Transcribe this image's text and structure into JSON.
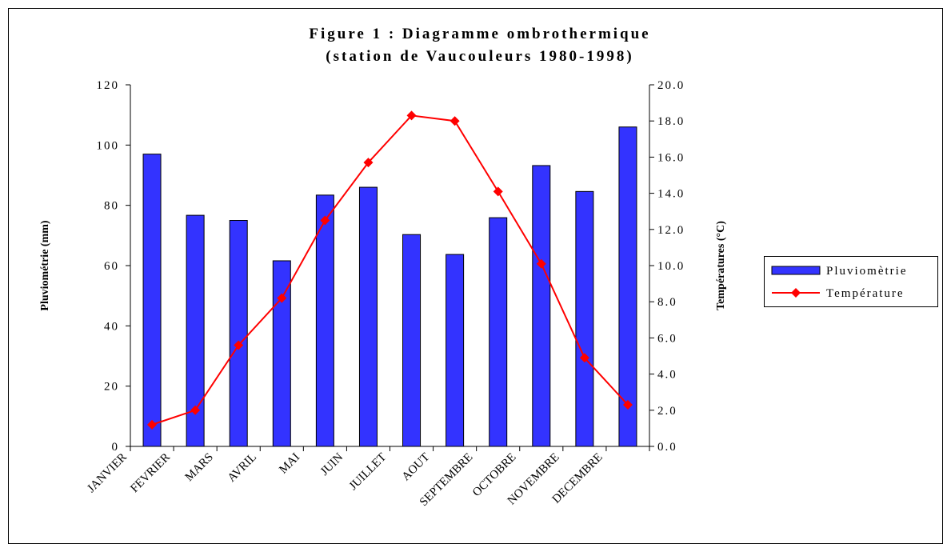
{
  "chart_data": {
    "type": "bar_line",
    "title": "Figure 1 : Diagramme ombrothermique",
    "subtitle": "(station de Vaucouleurs 1980-1998)",
    "ylabel": "Pluviométrie (mm)",
    "y2label": "Températures (°C)",
    "categories": [
      "JANVIER",
      "FEVRIER",
      "MARS",
      "AVRIL",
      "MAI",
      "JUIN",
      "JUILLET",
      "AOUT",
      "SEPTEMBRE",
      "OCTOBRE",
      "NOVEMBRE",
      "DECEMBRE"
    ],
    "series": [
      {
        "name": "Pluviomètrie",
        "color": "#3333ff",
        "type": "bar",
        "values": [
          97,
          76.7,
          75,
          61.6,
          83.4,
          86,
          70.3,
          63.7,
          75.9,
          93.2,
          84.6,
          106
        ]
      },
      {
        "name": "Température",
        "color": "#ff0000",
        "type": "line",
        "axis": "y2",
        "values": [
          1.2,
          2.0,
          5.6,
          8.2,
          12.5,
          15.7,
          18.3,
          18.0,
          14.1,
          10.1,
          4.9,
          2.3
        ]
      }
    ],
    "ylim": [
      0,
      120
    ],
    "yticks": [
      0,
      20,
      40,
      60,
      80,
      100,
      120
    ],
    "y2lim": [
      0,
      20
    ],
    "y2ticks": [
      {
        "value": 0,
        "label": "0.0"
      },
      {
        "value": 2,
        "label": "2.0"
      },
      {
        "value": 4,
        "label": "4.0"
      },
      {
        "value": 6,
        "label": "6.0"
      },
      {
        "value": 8,
        "label": "8.0"
      },
      {
        "value": 10,
        "label": "10.0"
      },
      {
        "value": 12,
        "label": "12.0"
      },
      {
        "value": 14,
        "label": "14.0"
      },
      {
        "value": 16,
        "label": "16.0"
      },
      {
        "value": 18,
        "label": "18.0"
      },
      {
        "value": 20,
        "label": "20.0"
      }
    ],
    "legend": "right"
  }
}
